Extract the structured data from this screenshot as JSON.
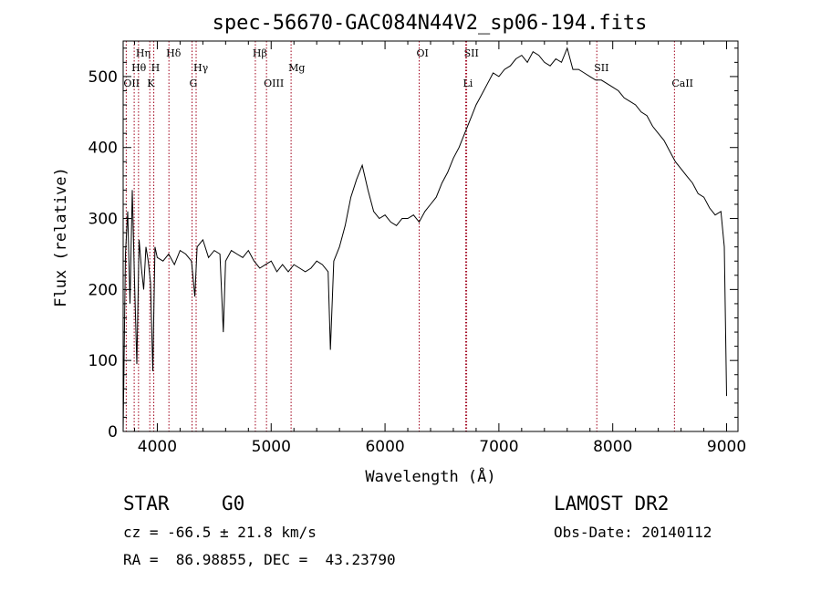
{
  "chart_data": {
    "type": "line",
    "title": "spec-56670-GAC084N44V2_sp06-194.fits",
    "xlabel": "Wavelength (Å)",
    "ylabel": "Flux (relative)",
    "xlim": [
      3700,
      9100
    ],
    "ylim": [
      0,
      550
    ],
    "xticks": [
      4000,
      5000,
      6000,
      7000,
      8000,
      9000
    ],
    "yticks": [
      0,
      100,
      200,
      300,
      400,
      500
    ],
    "grid": false,
    "series": [
      {
        "x": [
          3700,
          3720,
          3740,
          3760,
          3780,
          3800,
          3820,
          3840,
          3860,
          3880,
          3900,
          3920,
          3940,
          3960,
          3980,
          4000,
          4050,
          4100,
          4150,
          4200,
          4250,
          4300,
          4330,
          4350,
          4400,
          4450,
          4500,
          4550,
          4580,
          4600,
          4650,
          4700,
          4750,
          4800,
          4850,
          4900,
          4950,
          5000,
          5050,
          5100,
          5150,
          5200,
          5250,
          5300,
          5350,
          5400,
          5450,
          5500,
          5520,
          5550,
          5600,
          5650,
          5700,
          5750,
          5800,
          5850,
          5900,
          5950,
          6000,
          6050,
          6100,
          6150,
          6200,
          6250,
          6300,
          6350,
          6400,
          6450,
          6500,
          6550,
          6600,
          6650,
          6700,
          6750,
          6800,
          6850,
          6900,
          6950,
          7000,
          7050,
          7100,
          7150,
          7200,
          7250,
          7300,
          7350,
          7400,
          7450,
          7500,
          7550,
          7600,
          7650,
          7700,
          7750,
          7800,
          7850,
          7900,
          7950,
          8000,
          8050,
          8100,
          8150,
          8200,
          8250,
          8300,
          8350,
          8400,
          8450,
          8500,
          8550,
          8600,
          8650,
          8700,
          8750,
          8800,
          8850,
          8900,
          8950,
          8980,
          9000
        ],
        "y": [
          0,
          250,
          310,
          180,
          340,
          210,
          95,
          270,
          230,
          200,
          260,
          240,
          210,
          85,
          260,
          245,
          240,
          250,
          235,
          255,
          250,
          240,
          190,
          260,
          270,
          245,
          255,
          250,
          140,
          240,
          255,
          250,
          245,
          255,
          240,
          230,
          235,
          240,
          225,
          235,
          225,
          235,
          230,
          225,
          230,
          240,
          235,
          225,
          115,
          240,
          260,
          290,
          330,
          355,
          375,
          340,
          310,
          300,
          305,
          295,
          290,
          300,
          300,
          305,
          295,
          310,
          320,
          330,
          350,
          365,
          385,
          400,
          420,
          440,
          460,
          475,
          490,
          505,
          500,
          510,
          515,
          525,
          530,
          520,
          535,
          530,
          520,
          515,
          525,
          520,
          540,
          510,
          510,
          505,
          500,
          495,
          495,
          490,
          485,
          480,
          470,
          465,
          460,
          450,
          445,
          430,
          420,
          410,
          395,
          380,
          370,
          360,
          350,
          335,
          330,
          315,
          305,
          310,
          260,
          50
        ]
      }
    ],
    "lines": [
      {
        "label": "Hη",
        "x": 3835,
        "row": 0
      },
      {
        "label": "Hθ",
        "x": 3797,
        "row": 1
      },
      {
        "label": "OII",
        "x": 3727,
        "row": 2
      },
      {
        "label": "H",
        "x": 3969,
        "row": 1
      },
      {
        "label": "K",
        "x": 3934,
        "row": 2
      },
      {
        "label": "Hδ",
        "x": 4102,
        "row": 0
      },
      {
        "label": "Hγ",
        "x": 4341,
        "row": 1
      },
      {
        "label": "G",
        "x": 4305,
        "row": 2
      },
      {
        "label": "Hβ",
        "x": 4861,
        "row": 0
      },
      {
        "label": "OIII",
        "x": 4959,
        "row": 2
      },
      {
        "label": "Mg",
        "x": 5175,
        "row": 1
      },
      {
        "label": "OI",
        "x": 6300,
        "row": 0
      },
      {
        "label": "SII",
        "x": 6717,
        "row": 0
      },
      {
        "label": "Li",
        "x": 6708,
        "row": 2
      },
      {
        "label": "SII",
        "x": 7860,
        "row": 1
      },
      {
        "label": "CaII",
        "x": 8542,
        "row": 2
      }
    ],
    "colors": {
      "spectrum": "#000000",
      "lines": "#a0001a"
    }
  },
  "info": {
    "class": "STAR",
    "subclass": "G0",
    "survey": "LAMOST DR2",
    "cz": "cz = -66.5 ± 21.8 km/s",
    "obsdate": "Obs-Date: 20140112",
    "coords": "RA =  86.98855, DEC =  43.23790"
  }
}
